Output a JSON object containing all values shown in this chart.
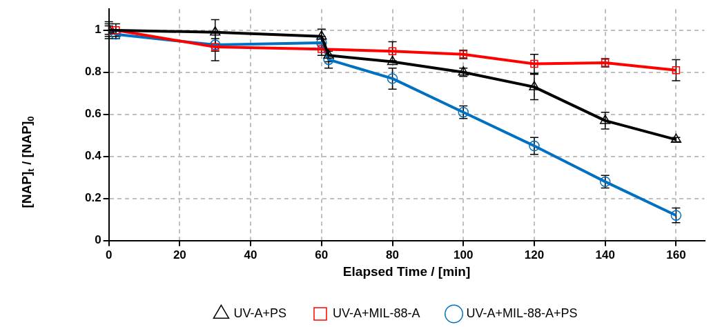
{
  "chart_data": {
    "type": "line",
    "xlabel": "Elapsed Time / [min]",
    "ylabel": "[NAP]$_{t}$ / [NAP]$_{0}$",
    "xlim": [
      0,
      168
    ],
    "xticks": [
      0,
      20,
      40,
      60,
      80,
      100,
      120,
      140,
      160
    ],
    "ylim": [
      0,
      1.1
    ],
    "yticks": [
      0,
      0.2,
      0.4,
      0.6,
      0.8,
      1
    ],
    "grid": true,
    "legend": "bottom",
    "series": [
      {
        "name": "UV-A+PS",
        "color": "#000000",
        "marker": "triangle",
        "x": [
          0,
          30,
          60,
          62,
          80,
          100,
          120,
          140,
          160
        ],
        "values": [
          1.0,
          0.99,
          0.97,
          0.88,
          0.85,
          0.8,
          0.73,
          0.57,
          0.48
        ],
        "errors": [
          0.04,
          0.06,
          0.035,
          0.03,
          null,
          0.02,
          0.06,
          0.04,
          0.01
        ]
      },
      {
        "name": "UV-A+MIL-88-A",
        "color": "#ff0000",
        "marker": "square",
        "x": [
          0,
          2,
          30,
          60,
          80,
          100,
          120,
          140,
          160
        ],
        "values": [
          1.0,
          1.0,
          0.92,
          0.91,
          0.9,
          0.885,
          0.84,
          0.845,
          0.81
        ],
        "errors": [
          0.03,
          0.03,
          0.065,
          0.03,
          0.045,
          0.02,
          0.045,
          0.02,
          0.05
        ]
      },
      {
        "name": "UV-A+MIL-88-A+PS",
        "color": "#0070c0",
        "marker": "circle",
        "x": [
          0,
          2,
          30,
          60,
          62,
          80,
          100,
          120,
          140,
          160
        ],
        "values": [
          1.0,
          0.98,
          0.93,
          0.94,
          0.86,
          0.77,
          0.61,
          0.45,
          0.28,
          0.12
        ],
        "errors": [
          0.02,
          0.02,
          0.03,
          0.03,
          0.04,
          0.05,
          0.03,
          0.04,
          0.03,
          0.035
        ]
      }
    ]
  }
}
